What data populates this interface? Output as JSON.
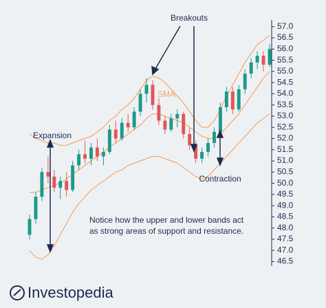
{
  "logo": "Investopedia",
  "chart_data": {
    "type": "candlestick",
    "open": [
      47.7,
      48.4,
      49.4,
      50.5,
      50.3,
      49.8,
      50.1,
      49.7,
      50.8,
      51.3,
      51.1,
      51.6,
      51.2,
      51.4,
      52.4,
      52.0,
      52.7,
      52.5,
      53.2,
      54.0,
      54.4,
      53.5,
      52.8,
      52.4,
      52.9,
      53.1,
      52.2,
      51.7,
      51.1,
      51.4,
      51.8,
      52.3,
      53.4,
      54.1,
      53.3,
      54.2,
      54.9,
      55.4,
      55.7,
      55.3
    ],
    "high": [
      48.6,
      49.6,
      50.7,
      51.2,
      50.6,
      50.3,
      50.5,
      51.0,
      51.5,
      51.9,
      51.8,
      52.0,
      51.6,
      52.6,
      52.8,
      52.9,
      53.1,
      53.4,
      54.2,
      54.7,
      54.6,
      53.8,
      53.0,
      53.1,
      53.3,
      53.2,
      52.5,
      51.9,
      51.6,
      52.0,
      52.5,
      53.6,
      54.3,
      54.3,
      54.4,
      55.1,
      55.6,
      55.9,
      55.9,
      56.2
    ],
    "low": [
      47.5,
      48.2,
      49.2,
      50.0,
      49.6,
      49.3,
      49.4,
      49.6,
      50.6,
      50.9,
      50.8,
      51.0,
      50.8,
      51.3,
      51.8,
      51.9,
      52.3,
      52.4,
      53.0,
      53.6,
      53.3,
      52.6,
      52.2,
      52.3,
      52.5,
      52.0,
      51.5,
      50.9,
      50.9,
      51.2,
      51.6,
      52.1,
      53.2,
      53.1,
      53.2,
      54.0,
      54.7,
      55.1,
      55.0,
      55.2
    ],
    "close": [
      48.4,
      49.4,
      50.5,
      50.3,
      49.8,
      50.1,
      49.7,
      50.8,
      51.3,
      51.1,
      51.6,
      51.2,
      51.4,
      52.4,
      52.0,
      52.7,
      52.5,
      53.2,
      54.0,
      54.4,
      53.5,
      52.8,
      52.4,
      52.9,
      53.1,
      52.2,
      51.7,
      51.1,
      51.4,
      51.8,
      52.3,
      53.4,
      54.1,
      53.3,
      54.2,
      54.9,
      55.4,
      55.7,
      55.3,
      56.0
    ],
    "up_color": "#1c9a8a",
    "down_color": "#e0565b",
    "bands": {
      "color": "#f3a66a",
      "upper": [
        52.2,
        52.0,
        51.9,
        51.8,
        51.8,
        51.7,
        51.7,
        51.8,
        51.9,
        52.0,
        52.1,
        52.3,
        52.5,
        52.8,
        53.0,
        53.3,
        53.5,
        53.8,
        54.2,
        54.6,
        54.8,
        54.7,
        54.5,
        54.2,
        53.9,
        53.6,
        53.2,
        52.8,
        52.5,
        52.5,
        52.8,
        53.3,
        53.9,
        54.4,
        54.9,
        55.4,
        55.8,
        56.2,
        56.4,
        56.6
      ],
      "middle": [
        49.6,
        49.6,
        49.7,
        49.8,
        49.9,
        50.0,
        50.2,
        50.4,
        50.6,
        50.8,
        51.0,
        51.2,
        51.4,
        51.6,
        51.8,
        52.0,
        52.2,
        52.4,
        52.6,
        52.9,
        53.1,
        53.1,
        53.0,
        52.9,
        52.8,
        52.7,
        52.5,
        52.3,
        52.1,
        52.0,
        52.0,
        52.2,
        52.5,
        52.8,
        53.1,
        53.5,
        53.9,
        54.3,
        54.7,
        55.0
      ],
      "lower": [
        47.0,
        46.7,
        46.6,
        46.8,
        47.2,
        47.7,
        48.2,
        48.7,
        49.1,
        49.4,
        49.7,
        49.9,
        50.1,
        50.3,
        50.5,
        50.6,
        50.8,
        50.9,
        51.0,
        51.1,
        51.2,
        51.2,
        51.1,
        51.0,
        50.9,
        50.7,
        50.5,
        50.3,
        50.2,
        50.3,
        50.6,
        50.9,
        51.2,
        51.5,
        51.8,
        52.1,
        52.4,
        52.7,
        52.9,
        53.1
      ]
    },
    "ylim": [
      46.3,
      57.3
    ],
    "yticks": [
      46.5,
      {
        "value": 47,
        "label": "47.0"
      },
      47.5,
      {
        "value": 48,
        "label": "48.0"
      },
      48.5,
      {
        "value": 49,
        "label": "49.0"
      },
      49.5,
      {
        "value": 50,
        "label": "50.0"
      },
      50.5,
      {
        "value": 51,
        "label": "51.0"
      },
      51.5,
      {
        "value": 52,
        "label": "52.0"
      },
      52.5,
      {
        "value": 53,
        "label": "53.0"
      },
      53.5,
      {
        "value": 54,
        "label": "54.0"
      },
      54.5,
      {
        "value": 55,
        "label": "55.0"
      },
      55.5,
      {
        "value": 56,
        "label": "56.0"
      },
      56.5,
      {
        "value": 57,
        "label": "57.0"
      }
    ],
    "y_axis_side": "right",
    "annotations": {
      "breakouts": "Breakouts",
      "sma": "SMA",
      "expansion": "Expansion",
      "contraction": "Contraction",
      "note_line1": "Notice how the upper and lower bands act",
      "note_line2": "as strong areas of support and resistance."
    }
  }
}
